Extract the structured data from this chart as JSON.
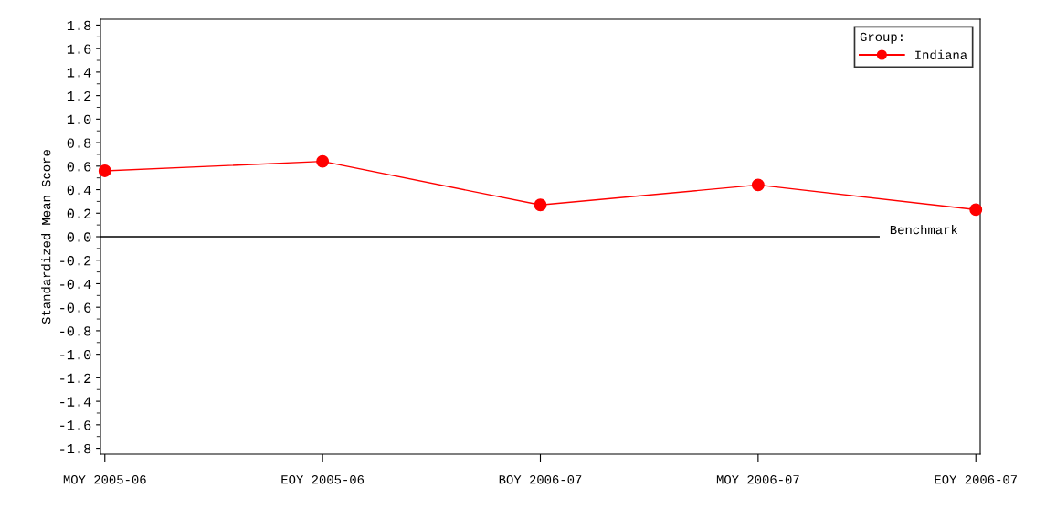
{
  "chart_data": {
    "type": "line",
    "ylabel": "Standardized Mean Score",
    "categories": [
      "MOY 2005-06",
      "EOY 2005-06",
      "BOY 2006-07",
      "MOY 2006-07",
      "EOY 2006-07"
    ],
    "series": [
      {
        "name": "Indiana",
        "color": "#ff0000",
        "values": [
          0.56,
          0.64,
          0.27,
          0.44,
          0.23
        ]
      }
    ],
    "legend_title": "Group:",
    "legend": "top right",
    "marker": "circle",
    "line_style": "solid",
    "ylim": [
      -1.85,
      1.85
    ],
    "yticks": [
      {
        "value": -1.8,
        "label": "-1.8"
      },
      {
        "value": -1.6,
        "label": "-1.6"
      },
      {
        "value": -1.4,
        "label": "-1.4"
      },
      {
        "value": -1.2,
        "label": "-1.2"
      },
      {
        "value": -1.0,
        "label": "-1.0"
      },
      {
        "value": -0.8,
        "label": "-0.8"
      },
      {
        "value": -0.6,
        "label": "-0.6"
      },
      {
        "value": -0.4,
        "label": "-0.4"
      },
      {
        "value": -0.2,
        "label": "-0.2"
      },
      {
        "value": 0.0,
        "label": "0.0"
      },
      {
        "value": 0.2,
        "label": "0.2"
      },
      {
        "value": 0.4,
        "label": "0.4"
      },
      {
        "value": 0.6,
        "label": "0.6"
      },
      {
        "value": 0.8,
        "label": "0.8"
      },
      {
        "value": 1.0,
        "label": "1.0"
      },
      {
        "value": 1.2,
        "label": "1.2"
      },
      {
        "value": 1.4,
        "label": "1.4"
      },
      {
        "value": 1.6,
        "label": "1.6"
      },
      {
        "value": 1.8,
        "label": "1.8"
      }
    ],
    "ref_lines": [
      {
        "axis": "y",
        "value": 0,
        "label": "Benchmark",
        "color": "#000000",
        "line_style": "solid"
      }
    ],
    "grid": false
  }
}
